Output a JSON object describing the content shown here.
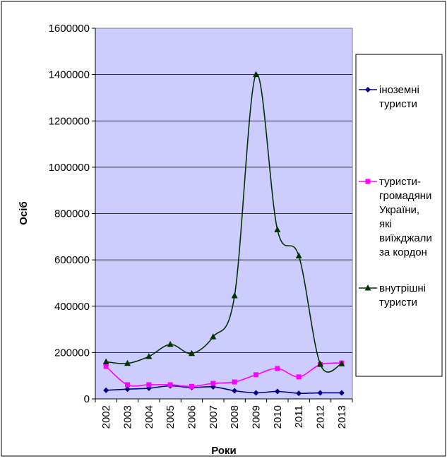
{
  "chart_data": {
    "type": "line",
    "xlabel": "Роки",
    "ylabel": "Осіб",
    "ylim": [
      0,
      1600000
    ],
    "yticks": [
      "0",
      "200000",
      "400000",
      "600000",
      "800000",
      "1000000",
      "1200000",
      "1400000",
      "1600000"
    ],
    "grid": "horizontal",
    "legend_position": "right",
    "plot_background": "#ccccff",
    "categories": [
      "2002",
      "2003",
      "2004",
      "2005",
      "2006",
      "2007",
      "2008",
      "2009",
      "2010",
      "2011",
      "2012",
      "2013"
    ],
    "series": [
      {
        "name_lines": [
          "іноземні",
          "туристи"
        ],
        "color": "#000080",
        "marker": "diamond",
        "values": [
          37000,
          42000,
          46000,
          56000,
          49000,
          52000,
          35000,
          26000,
          32000,
          24000,
          26000,
          26000
        ]
      },
      {
        "name_lines": [
          "туристи-",
          "громадяни",
          "України,",
          "які",
          "виїжджали",
          "за кордон"
        ],
        "color": "#ff00ff",
        "marker": "square",
        "values": [
          140000,
          61000,
          61000,
          61000,
          54000,
          67000,
          73000,
          104000,
          131000,
          95000,
          148000,
          155000
        ]
      },
      {
        "name_lines": [
          "внутрішні",
          "туристи"
        ],
        "color": "#003300",
        "marker": "triangle",
        "values": [
          160000,
          153000,
          183000,
          235000,
          196000,
          268000,
          445000,
          1400000,
          730000,
          617000,
          150000,
          151000
        ]
      }
    ]
  }
}
